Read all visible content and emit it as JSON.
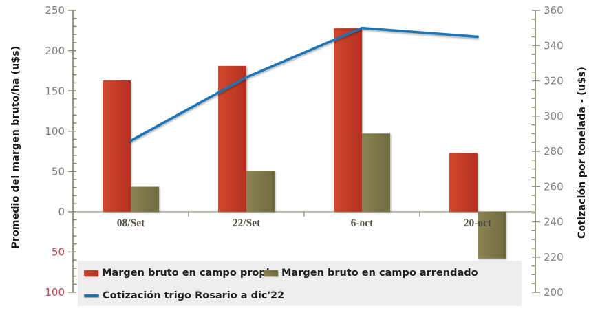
{
  "chart_data": {
    "type": "combo-bar-line",
    "categories": [
      "08/Set",
      "22/Set",
      "6-oct",
      "20-oct"
    ],
    "bar_series": [
      {
        "name": "Margen bruto en campo propio",
        "values": [
          163,
          181,
          228,
          73
        ],
        "fill": [
          "#d0492e",
          "#b5301f"
        ]
      },
      {
        "name": "Margen bruto en campo arrendado",
        "values": [
          31,
          51,
          97,
          -58
        ],
        "fill": [
          "#8b8555",
          "#6f6a40"
        ]
      }
    ],
    "line_series": [
      {
        "name": "Cotización trigo Rosario a dic'22",
        "values": [
          286,
          322,
          350,
          345
        ],
        "color": "#1d74b4",
        "axis": "right"
      }
    ],
    "left_axis": {
      "label": "Promedio del margen bruto/ha (u$s)",
      "min": -100,
      "max": 250,
      "major": 50,
      "minor": 10,
      "tick_labels": [
        "250",
        "200",
        "150",
        "100",
        "50",
        "0",
        "50",
        "100"
      ],
      "note": "negative ticks shown unsigned in red"
    },
    "right_axis": {
      "label": "Cotización por tonelada - (u$s)",
      "min": 200,
      "max": 360,
      "major": 20,
      "minor": 5,
      "tick_labels": [
        "360",
        "340",
        "320",
        "300",
        "280",
        "260",
        "240",
        "220",
        "200"
      ]
    },
    "grid": "off",
    "legend_position": "bottom"
  },
  "colors": {
    "tick": "#7f7f7f",
    "negative_tick": "#c24450",
    "x_label": "#4c463b",
    "axis_stroke": "#8b8b6e",
    "x_axis_stroke": "#9a987c",
    "legend_bg": "#efeeec",
    "line": "#1d74b4"
  }
}
